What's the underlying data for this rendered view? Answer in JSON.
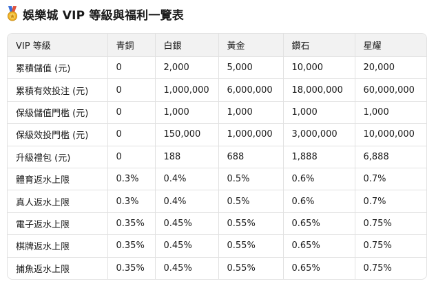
{
  "page": {
    "title": "娛樂城 VIP 等級與福利一覽表",
    "title_icon": "medal-icon"
  },
  "table": {
    "headers": [
      "VIP 等級",
      "青銅",
      "白銀",
      "黃金",
      "鑽石",
      "星耀"
    ],
    "rows": [
      [
        "累積儲值 (元)",
        "0",
        "2,000",
        "5,000",
        "10,000",
        "20,000"
      ],
      [
        "累積有效投注 (元)",
        "0",
        "1,000,000",
        "6,000,000",
        "18,000,000",
        "60,000,000"
      ],
      [
        "保級儲值門檻 (元)",
        "0",
        "1,000",
        "1,000",
        "1,000",
        "1,000"
      ],
      [
        "保級效投門檻 (元)",
        "0",
        "150,000",
        "1,000,000",
        "3,000,000",
        "10,000,000"
      ],
      [
        "升級禮包 (元)",
        "0",
        "188",
        "688",
        "1,888",
        "6,888"
      ],
      [
        "體育返水上限",
        "0.3%",
        "0.4%",
        "0.5%",
        "0.6%",
        "0.7%"
      ],
      [
        "真人返水上限",
        "0.3%",
        "0.4%",
        "0.5%",
        "0.6%",
        "0.7%"
      ],
      [
        "電子返水上限",
        "0.35%",
        "0.45%",
        "0.55%",
        "0.65%",
        "0.75%"
      ],
      [
        "棋牌返水上限",
        "0.35%",
        "0.45%",
        "0.55%",
        "0.65%",
        "0.75%"
      ],
      [
        "捕魚返水上限",
        "0.35%",
        "0.45%",
        "0.55%",
        "0.65%",
        "0.75%"
      ]
    ]
  },
  "colors": {
    "header_bg": "#f2f2f2",
    "border": "#e1e1e1",
    "text": "#1a1a1a",
    "medal_gold": "#f0b429",
    "ribbon_blue": "#3b6fd8",
    "ribbon_red": "#e0533d"
  }
}
